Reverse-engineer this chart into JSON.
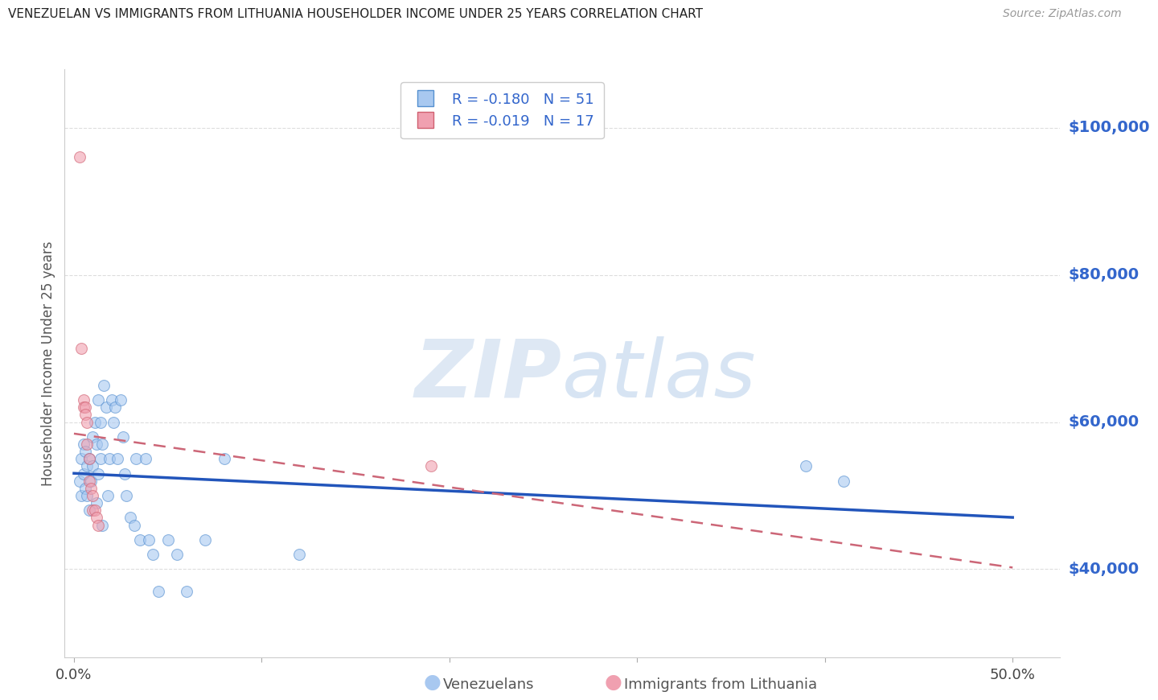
{
  "title": "VENEZUELAN VS IMMIGRANTS FROM LITHUANIA HOUSEHOLDER INCOME UNDER 25 YEARS CORRELATION CHART",
  "source": "Source: ZipAtlas.com",
  "ylabel": "Householder Income Under 25 years",
  "legend_labels": [
    "Venezuelans",
    "Immigrants from Lithuania"
  ],
  "legend_R": [
    "R = -0.180",
    "R = -0.019"
  ],
  "legend_N": [
    "N = 51",
    "N = 17"
  ],
  "blue_fill": "#A8C8F0",
  "blue_edge": "#5590D0",
  "pink_fill": "#F0A0B0",
  "pink_edge": "#D06070",
  "blue_line_color": "#2255BB",
  "pink_line_color": "#CC6677",
  "right_axis_color": "#3366CC",
  "title_color": "#222222",
  "ylim": [
    28000,
    108000
  ],
  "xlim": [
    -0.005,
    0.525
  ],
  "yticks": [
    40000,
    60000,
    80000,
    100000
  ],
  "xticks": [
    0.0,
    0.1,
    0.2,
    0.3,
    0.4,
    0.5
  ],
  "xtick_labels": [
    "0.0%",
    "",
    "",
    "",
    "",
    "50.0%"
  ],
  "venezuelan_x": [
    0.003,
    0.004,
    0.004,
    0.005,
    0.005,
    0.006,
    0.006,
    0.007,
    0.007,
    0.008,
    0.008,
    0.009,
    0.01,
    0.01,
    0.011,
    0.012,
    0.012,
    0.013,
    0.013,
    0.014,
    0.014,
    0.015,
    0.015,
    0.016,
    0.017,
    0.018,
    0.019,
    0.02,
    0.021,
    0.022,
    0.023,
    0.025,
    0.026,
    0.027,
    0.028,
    0.03,
    0.032,
    0.033,
    0.035,
    0.038,
    0.04,
    0.042,
    0.045,
    0.05,
    0.055,
    0.06,
    0.07,
    0.08,
    0.12,
    0.39,
    0.41
  ],
  "venezuelan_y": [
    52000,
    55000,
    50000,
    57000,
    53000,
    56000,
    51000,
    54000,
    50000,
    55000,
    48000,
    52000,
    58000,
    54000,
    60000,
    57000,
    49000,
    63000,
    53000,
    60000,
    55000,
    57000,
    46000,
    65000,
    62000,
    50000,
    55000,
    63000,
    60000,
    62000,
    55000,
    63000,
    58000,
    53000,
    50000,
    47000,
    46000,
    55000,
    44000,
    55000,
    44000,
    42000,
    37000,
    44000,
    42000,
    37000,
    44000,
    55000,
    42000,
    54000,
    52000
  ],
  "lithuanian_x": [
    0.003,
    0.004,
    0.005,
    0.005,
    0.006,
    0.006,
    0.007,
    0.007,
    0.008,
    0.008,
    0.009,
    0.01,
    0.01,
    0.011,
    0.012,
    0.013,
    0.19
  ],
  "lithuanian_y": [
    96000,
    70000,
    63000,
    62000,
    62000,
    61000,
    60000,
    57000,
    55000,
    52000,
    51000,
    50000,
    48000,
    48000,
    47000,
    46000,
    54000
  ],
  "background_color": "#FFFFFF",
  "grid_color": "#DDDDDD",
  "marker_size": 100,
  "marker_alpha": 0.6
}
